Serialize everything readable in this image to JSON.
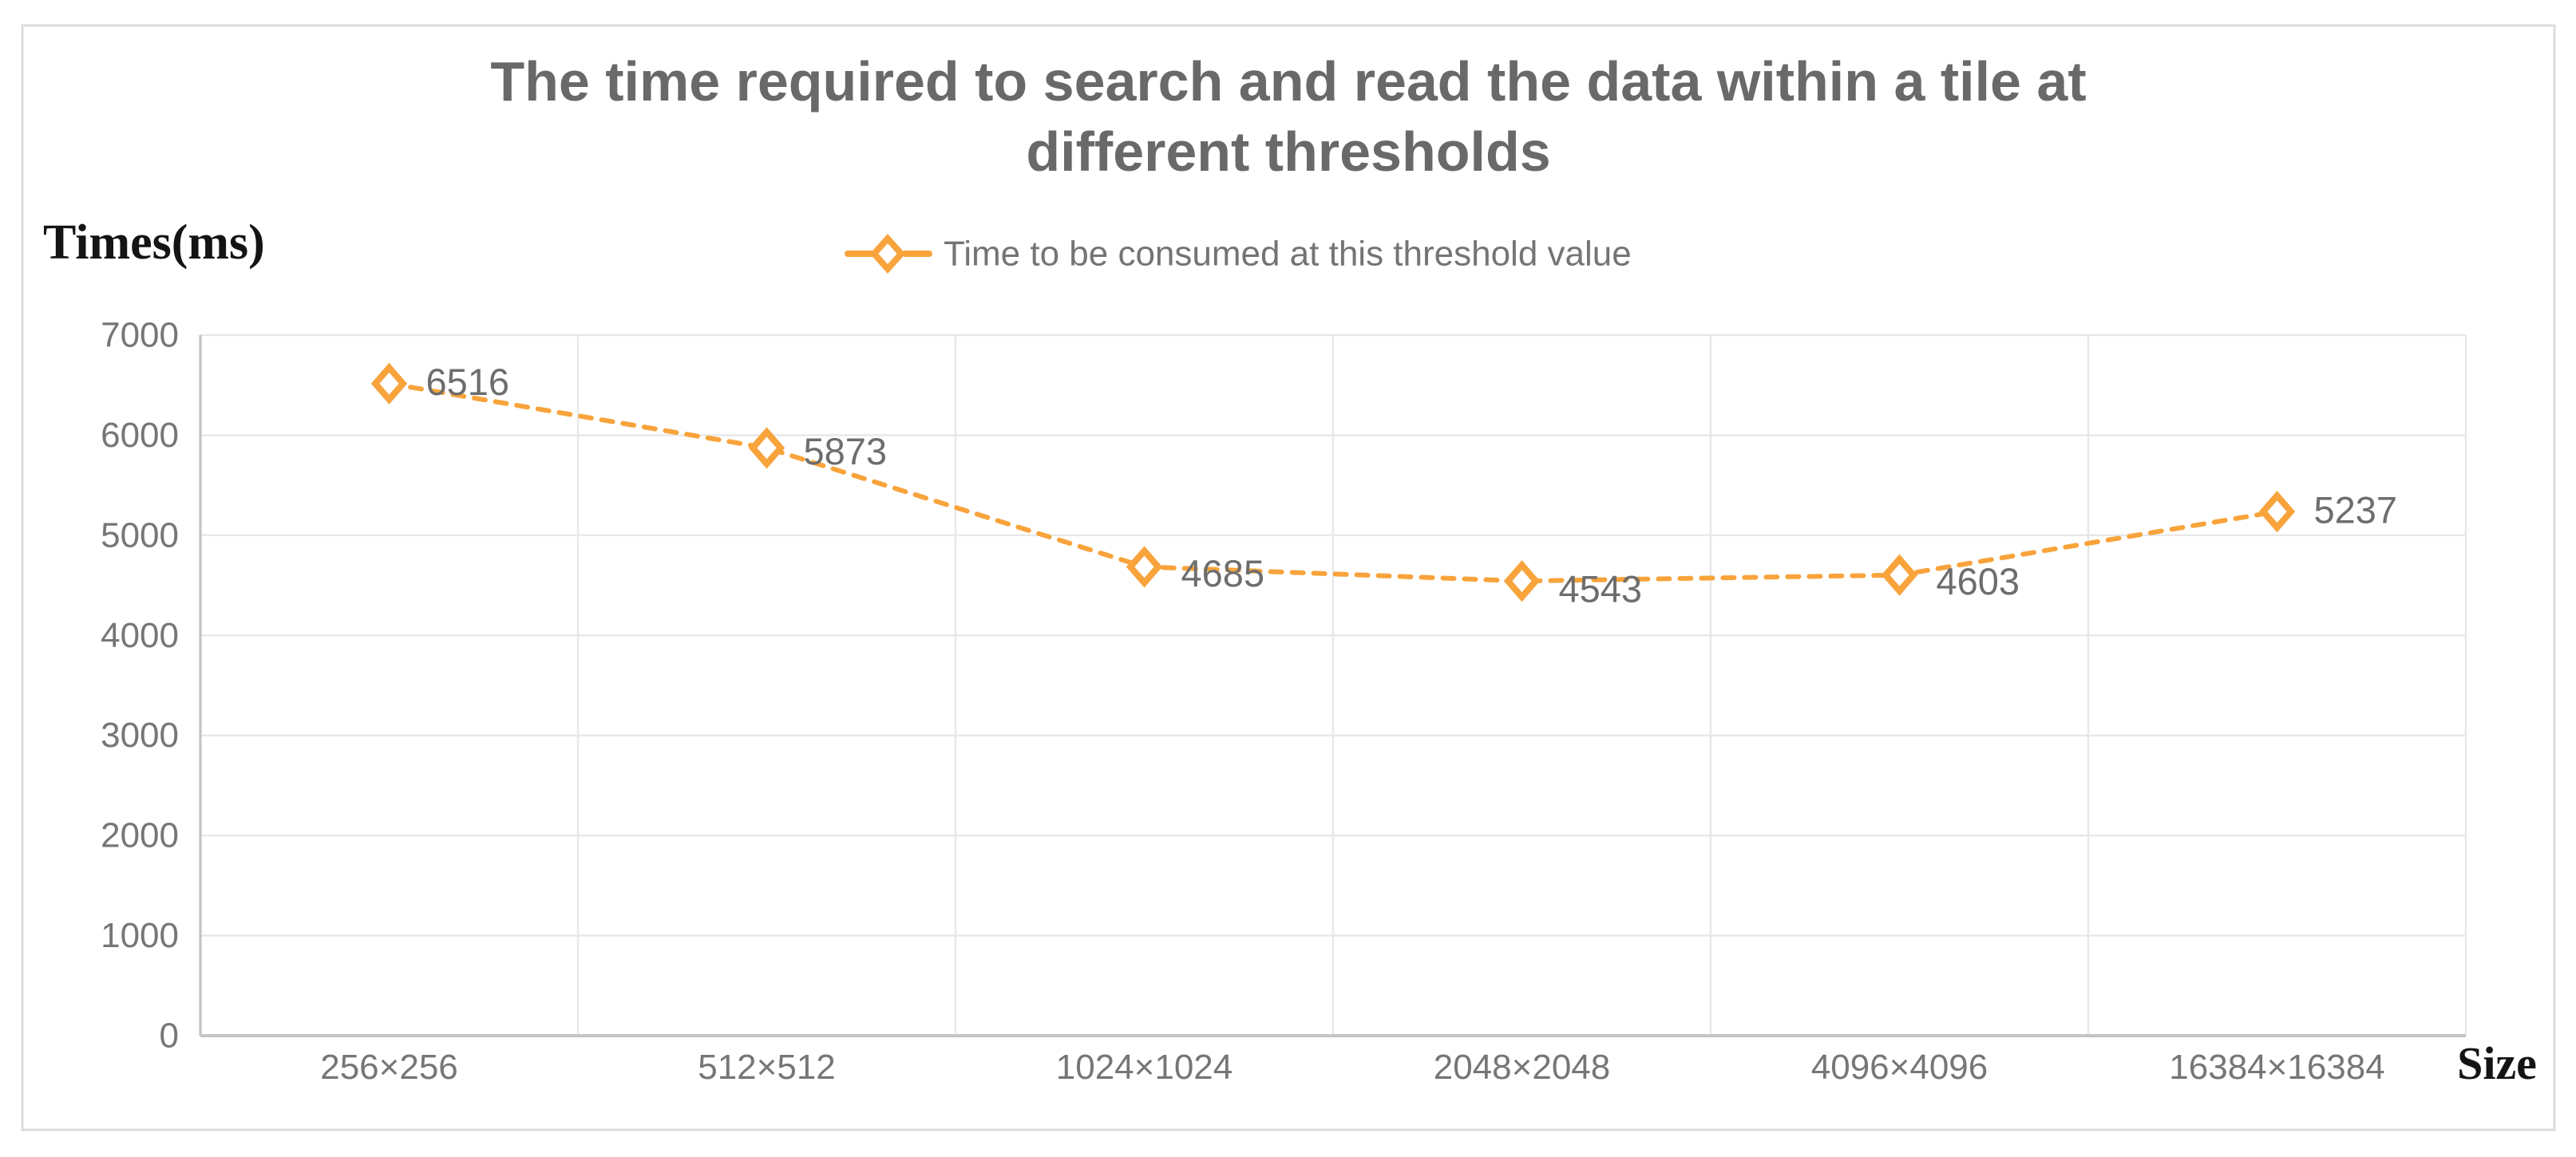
{
  "chart": {
    "title_line1": "The time required to search and read the data within a tile at",
    "title_line2": "different thresholds",
    "y_axis_title": "Times(ms)",
    "x_axis_title": "Size",
    "legend_label": "Time to be consumed at this threshold value"
  },
  "chart_data": {
    "type": "line",
    "title": "The time required to search and read the data within a tile at different thresholds",
    "categories": [
      "256×256",
      "512×512",
      "1024×1024",
      "2048×2048",
      "4096×4096",
      "16384×16384"
    ],
    "series": [
      {
        "name": "Time to be consumed at this threshold value",
        "values": [
          6516,
          5873,
          4685,
          4543,
          4603,
          5237
        ]
      }
    ],
    "xlabel": "Size",
    "ylabel": "Times(ms)",
    "ylim": [
      0,
      7000
    ],
    "yticks": [
      0,
      1000,
      2000,
      3000,
      4000,
      5000,
      6000,
      7000
    ],
    "grid": true,
    "gridlines": "horizontal-and-vertical",
    "legend_position": "top-center",
    "line_style": "dashed",
    "marker": "hollow-diamond",
    "data_labels_shown": true,
    "colors": {
      "series": "#F8A33B",
      "gridline": "#E8E8E8",
      "axis_line": "#C4C4C4",
      "tick_label": "#767676",
      "data_label": "#6D6D6D",
      "title": "#696969",
      "axis_title_text": "#141414",
      "chart_border": "#DCDCDC",
      "background": "#FFFFFF"
    }
  }
}
